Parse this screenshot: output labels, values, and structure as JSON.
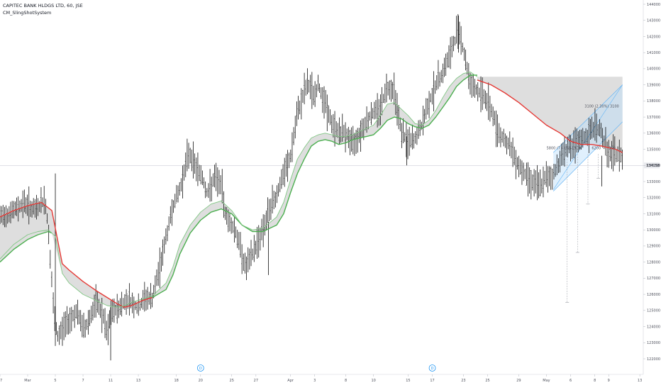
{
  "chart_data": {
    "type": "line",
    "title": "CAPITEC BANK HLDGS LTD, 60, JSE",
    "indicator": "CM_SlingShotSystem",
    "y_axis": {
      "min": 121000,
      "max": 144500,
      "ticks": [
        122000,
        123000,
        124000,
        125000,
        126000,
        127000,
        128000,
        129000,
        130000,
        131000,
        132000,
        133000,
        134000,
        135000,
        136000,
        137000,
        138000,
        139000,
        140000,
        141000,
        142000,
        143000,
        144000
      ]
    },
    "x_axis": {
      "ticks": [
        {
          "label": "27",
          "x": 0
        },
        {
          "label": "Mar",
          "x": 4
        },
        {
          "label": "5",
          "x": 8
        },
        {
          "label": "7",
          "x": 12
        },
        {
          "label": "11",
          "x": 16
        },
        {
          "label": "13",
          "x": 20
        },
        {
          "label": "18",
          "x": 25.5
        },
        {
          "label": "20",
          "x": 29
        },
        {
          "label": "25",
          "x": 33.5
        },
        {
          "label": "27",
          "x": 37
        },
        {
          "label": "Apr",
          "x": 42
        },
        {
          "label": "3",
          "x": 45.5
        },
        {
          "label": "8",
          "x": 50
        },
        {
          "label": "10",
          "x": 54
        },
        {
          "label": "15",
          "x": 59
        },
        {
          "label": "17",
          "x": 62.5
        },
        {
          "label": "23",
          "x": 67
        },
        {
          "label": "25",
          "x": 70.5
        },
        {
          "label": "29",
          "x": 75
        },
        {
          "label": "May",
          "x": 79
        },
        {
          "label": "6",
          "x": 82.5
        },
        {
          "label": "8",
          "x": 86
        },
        {
          "label": "9",
          "x": 88
        },
        {
          "label": "13",
          "x": 92.5
        }
      ]
    },
    "x_range": [
      0,
      93
    ],
    "price_path": [
      [
        0,
        130800
      ],
      [
        2,
        131200
      ],
      [
        3.5,
        131700
      ],
      [
        5,
        131200
      ],
      [
        6.5,
        131900
      ],
      [
        7,
        130000
      ],
      [
        7.8,
        124700
      ],
      [
        8.3,
        123300
      ],
      [
        9.5,
        124200
      ],
      [
        11,
        124900
      ],
      [
        12.2,
        123800
      ],
      [
        13,
        124600
      ],
      [
        14,
        125500
      ],
      [
        15,
        124500
      ],
      [
        15.5,
        123400
      ],
      [
        16,
        124800
      ],
      [
        17,
        125100
      ],
      [
        18.5,
        125700
      ],
      [
        20,
        125100
      ],
      [
        21,
        125800
      ],
      [
        22,
        125700
      ],
      [
        23,
        127500
      ],
      [
        24,
        129500
      ],
      [
        25,
        131500
      ],
      [
        26,
        132500
      ],
      [
        27.3,
        134800
      ],
      [
        28,
        134200
      ],
      [
        29.3,
        133200
      ],
      [
        30,
        132200
      ],
      [
        31,
        133200
      ],
      [
        32,
        132800
      ],
      [
        32.5,
        131200
      ],
      [
        33,
        130600
      ],
      [
        34,
        130000
      ],
      [
        34.8,
        128800
      ],
      [
        35.5,
        127600
      ],
      [
        36.5,
        128500
      ],
      [
        37.5,
        129500
      ],
      [
        38.5,
        130600
      ],
      [
        39,
        131300
      ],
      [
        40,
        132200
      ],
      [
        41,
        133400
      ],
      [
        42,
        134500
      ],
      [
        43,
        137200
      ],
      [
        44,
        138600
      ],
      [
        44.5,
        139100
      ],
      [
        45.5,
        138300
      ],
      [
        46,
        139000
      ],
      [
        47,
        137900
      ],
      [
        48,
        136500
      ],
      [
        49,
        136100
      ],
      [
        50,
        136000
      ],
      [
        51,
        135300
      ],
      [
        52,
        136000
      ],
      [
        53,
        136800
      ],
      [
        54,
        137300
      ],
      [
        55,
        137600
      ],
      [
        56,
        138900
      ],
      [
        57,
        138700
      ],
      [
        58,
        136100
      ],
      [
        59,
        135400
      ],
      [
        60,
        135600
      ],
      [
        61,
        136500
      ],
      [
        62,
        137900
      ],
      [
        63,
        139000
      ],
      [
        64,
        139800
      ],
      [
        65,
        140800
      ],
      [
        65.8,
        141800
      ],
      [
        66.3,
        142700
      ],
      [
        67,
        141100
      ],
      [
        68,
        139100
      ],
      [
        69,
        138600
      ],
      [
        70,
        138300
      ],
      [
        71,
        137500
      ],
      [
        72,
        136100
      ],
      [
        73,
        135600
      ],
      [
        74,
        134900
      ],
      [
        75,
        134000
      ],
      [
        76,
        133400
      ],
      [
        77,
        133000
      ],
      [
        78,
        132700
      ],
      [
        79,
        133200
      ],
      [
        80,
        133400
      ],
      [
        81,
        134400
      ],
      [
        82,
        135200
      ],
      [
        83,
        135100
      ],
      [
        84,
        135600
      ],
      [
        85,
        135800
      ],
      [
        86,
        136500
      ],
      [
        87,
        136000
      ],
      [
        88,
        134600
      ],
      [
        89,
        134700
      ],
      [
        90,
        134500
      ]
    ],
    "series": [
      {
        "name": "",
        "color": "#e53935",
        "points": [
          [
            0,
            130800
          ],
          [
            2,
            131200
          ],
          [
            4,
            131500
          ],
          [
            6,
            131700
          ],
          [
            7.5,
            131200
          ],
          [
            9,
            127900
          ],
          [
            10,
            127500
          ],
          [
            12,
            126800
          ],
          [
            14,
            126200
          ],
          [
            15.5,
            125800
          ],
          [
            17,
            125400
          ],
          [
            18,
            125200
          ],
          [
            19,
            125300
          ],
          [
            20.5,
            125600
          ],
          [
            22,
            125800
          ]
        ]
      },
      {
        "name": "",
        "color": "#e53935",
        "points": [
          [
            69,
            139300
          ],
          [
            71,
            139000
          ],
          [
            73,
            138500
          ],
          [
            75,
            137900
          ],
          [
            77,
            137200
          ],
          [
            79,
            136500
          ],
          [
            81,
            136000
          ],
          [
            82.5,
            135500
          ],
          [
            84,
            135300
          ],
          [
            85.5,
            135300
          ],
          [
            87,
            135200
          ],
          [
            88,
            135100
          ],
          [
            89,
            135000
          ],
          [
            90,
            134800
          ]
        ]
      },
      {
        "name": "",
        "color": "#4caf50",
        "points": [
          [
            0,
            128000
          ],
          [
            2,
            128800
          ],
          [
            4,
            129400
          ],
          [
            5.5,
            129700
          ],
          [
            7,
            129900
          ],
          [
            7.5,
            129800
          ]
        ]
      },
      {
        "name": "",
        "color": "#4caf50",
        "points": [
          [
            22,
            125800
          ],
          [
            24,
            126300
          ],
          [
            25,
            127200
          ],
          [
            26,
            128500
          ],
          [
            27.5,
            129800
          ],
          [
            29,
            130600
          ],
          [
            30.5,
            131100
          ],
          [
            32,
            131300
          ],
          [
            33.5,
            131000
          ],
          [
            35,
            130300
          ],
          [
            36.5,
            129900
          ],
          [
            38,
            129900
          ],
          [
            40,
            130300
          ],
          [
            41,
            131000
          ],
          [
            42,
            132300
          ],
          [
            43,
            133500
          ],
          [
            44,
            134400
          ],
          [
            45,
            135200
          ],
          [
            46,
            135500
          ],
          [
            47,
            135600
          ],
          [
            48,
            135500
          ],
          [
            49,
            135300
          ],
          [
            50,
            135400
          ],
          [
            51,
            135600
          ],
          [
            52,
            135700
          ],
          [
            53,
            135800
          ],
          [
            54,
            135900
          ],
          [
            55,
            136300
          ],
          [
            56,
            136800
          ],
          [
            57,
            137000
          ],
          [
            58,
            136900
          ],
          [
            59,
            136600
          ],
          [
            60,
            136400
          ],
          [
            61,
            136300
          ],
          [
            62,
            136500
          ],
          [
            63,
            137000
          ],
          [
            64,
            137600
          ],
          [
            65,
            138200
          ],
          [
            66,
            138900
          ],
          [
            67,
            139300
          ],
          [
            68,
            139600
          ],
          [
            69,
            139600
          ]
        ]
      },
      {
        "name": "",
        "color": "#81c784",
        "points": [
          [
            0,
            128200
          ],
          [
            2,
            129100
          ],
          [
            4,
            129700
          ],
          [
            5.5,
            129900
          ],
          [
            7,
            130000
          ],
          [
            8,
            129600
          ],
          [
            9,
            127300
          ],
          [
            10,
            126700
          ],
          [
            12,
            126000
          ],
          [
            14,
            125600
          ],
          [
            15.5,
            125300
          ],
          [
            17,
            125200
          ],
          [
            18,
            125300
          ],
          [
            19,
            125500
          ],
          [
            20.5,
            125700
          ],
          [
            22,
            125900
          ],
          [
            24,
            126700
          ],
          [
            25,
            127700
          ],
          [
            26,
            129100
          ],
          [
            27.5,
            130300
          ],
          [
            29,
            131100
          ],
          [
            30.5,
            131600
          ],
          [
            32,
            131800
          ],
          [
            33.5,
            131200
          ],
          [
            35,
            130300
          ],
          [
            36.5,
            130000
          ],
          [
            38,
            130100
          ],
          [
            40,
            130800
          ],
          [
            41,
            131700
          ],
          [
            42,
            133100
          ],
          [
            43,
            134400
          ],
          [
            44,
            135100
          ],
          [
            45,
            135700
          ],
          [
            46,
            135900
          ],
          [
            47,
            136000
          ],
          [
            48,
            135900
          ],
          [
            49,
            135800
          ],
          [
            50,
            135800
          ],
          [
            51,
            135900
          ],
          [
            52,
            136100
          ],
          [
            53,
            136300
          ],
          [
            54,
            136500
          ],
          [
            55,
            137100
          ],
          [
            56,
            137800
          ],
          [
            57,
            137900
          ],
          [
            58,
            137500
          ],
          [
            59,
            137100
          ],
          [
            60,
            136600
          ],
          [
            61,
            136500
          ],
          [
            62,
            136800
          ],
          [
            63,
            137400
          ],
          [
            64,
            138200
          ],
          [
            65,
            138900
          ],
          [
            66,
            139400
          ],
          [
            67,
            139700
          ],
          [
            68,
            139800
          ],
          [
            69,
            139500
          ]
        ]
      }
    ],
    "reference_line": {
      "value": 134000,
      "label": "134158"
    },
    "regression_channel": {
      "upper": [
        [
          80,
          132500
        ],
        [
          90,
          139000
        ]
      ],
      "lower": [
        [
          80,
          132400
        ],
        [
          90,
          136700
        ]
      ],
      "fill_top": [
        [
          80,
          134800
        ],
        [
          90,
          139000
        ]
      ],
      "fill_bottom": [
        [
          80,
          132400
        ],
        [
          90,
          136700
        ]
      ]
    },
    "annotations": [
      {
        "text": "3100 (2.30%) 3100",
        "x": 87,
        "y": 137600
      },
      {
        "text": "5800 (7.41%) 9300",
        "x": 81.5,
        "y": 135000
      },
      {
        "text": "6200",
        "x": 86.2,
        "y": 135000
      },
      {
        "text": "350",
        "x": 88.5,
        "y": 135000
      }
    ],
    "target_levels": [
      {
        "x": 82,
        "y": 125500
      },
      {
        "x": 83.5,
        "y": 128600
      },
      {
        "x": 85,
        "y": 131600
      },
      {
        "x": 86.5,
        "y": 133200
      }
    ],
    "event_markers": [
      {
        "label": "D",
        "x": 29
      },
      {
        "label": "D",
        "x": 62.5
      }
    ],
    "grid": false
  }
}
